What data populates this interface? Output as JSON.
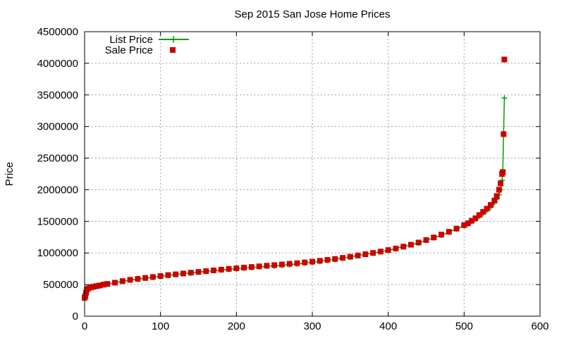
{
  "chart_data": {
    "type": "line",
    "title": "Sep 2015 San Jose Home Prices",
    "xlabel": "",
    "ylabel": "Price",
    "xlim": [
      0,
      600
    ],
    "ylim": [
      0,
      4500000
    ],
    "xticks": [
      "0",
      "100",
      "200",
      "300",
      "400",
      "500",
      "600"
    ],
    "yticks": [
      "0",
      "500000",
      "1000000",
      "1500000",
      "2000000",
      "2500000",
      "3000000",
      "3500000",
      "4000000",
      "4500000"
    ],
    "grid": true,
    "legend_position": "top-left",
    "series": [
      {
        "name": "List Price",
        "color": "#00a000",
        "marker": "plus",
        "x": [
          0,
          1,
          2,
          3,
          5,
          8,
          12,
          16,
          20,
          25,
          30,
          40,
          50,
          60,
          70,
          80,
          90,
          100,
          110,
          120,
          130,
          140,
          150,
          160,
          170,
          180,
          190,
          200,
          210,
          220,
          230,
          240,
          250,
          260,
          270,
          280,
          290,
          300,
          310,
          320,
          330,
          340,
          350,
          360,
          370,
          380,
          390,
          400,
          410,
          420,
          430,
          440,
          450,
          460,
          470,
          480,
          490,
          500,
          505,
          510,
          515,
          520,
          525,
          530,
          535,
          540,
          543,
          546,
          548,
          550,
          551,
          552,
          553
        ],
        "values": [
          300000,
          320000,
          360000,
          420000,
          460000,
          470000,
          475000,
          480000,
          490000,
          500000,
          510000,
          530000,
          550000,
          570000,
          585000,
          600000,
          615000,
          630000,
          645000,
          660000,
          675000,
          685000,
          695000,
          710000,
          720000,
          730000,
          740000,
          750000,
          760000,
          770000,
          780000,
          790000,
          795000,
          805000,
          815000,
          825000,
          840000,
          855000,
          870000,
          885000,
          900000,
          920000,
          940000,
          960000,
          980000,
          1000000,
          1020000,
          1040000,
          1070000,
          1100000,
          1130000,
          1160000,
          1200000,
          1240000,
          1280000,
          1330000,
          1380000,
          1430000,
          1460000,
          1500000,
          1540000,
          1580000,
          1620000,
          1670000,
          1720000,
          1790000,
          1850000,
          1920000,
          2000000,
          2150000,
          2300000,
          2880000,
          3450000
        ]
      },
      {
        "name": "Sale Price",
        "color": "#cc0000",
        "marker": "square",
        "x": [
          0,
          1,
          2,
          3,
          5,
          8,
          12,
          16,
          20,
          25,
          30,
          40,
          50,
          60,
          70,
          80,
          90,
          100,
          110,
          120,
          130,
          140,
          150,
          160,
          170,
          180,
          190,
          200,
          210,
          220,
          230,
          240,
          250,
          260,
          270,
          280,
          290,
          300,
          310,
          320,
          330,
          340,
          350,
          360,
          370,
          380,
          390,
          400,
          410,
          420,
          430,
          440,
          450,
          460,
          470,
          480,
          490,
          500,
          505,
          510,
          515,
          520,
          525,
          530,
          535,
          540,
          543,
          546,
          548,
          550,
          551,
          552,
          553
        ],
        "values": [
          290000,
          320000,
          370000,
          420000,
          440000,
          455000,
          465000,
          475000,
          485000,
          500000,
          510000,
          530000,
          555000,
          575000,
          590000,
          605000,
          620000,
          635000,
          650000,
          662000,
          675000,
          688000,
          700000,
          712000,
          724000,
          736000,
          748000,
          758000,
          768000,
          778000,
          788000,
          798000,
          808000,
          818000,
          828000,
          838000,
          850000,
          862000,
          876000,
          890000,
          905000,
          922000,
          940000,
          960000,
          980000,
          1000000,
          1022000,
          1045000,
          1070000,
          1100000,
          1130000,
          1165000,
          1205000,
          1245000,
          1290000,
          1335000,
          1385000,
          1440000,
          1470000,
          1510000,
          1550000,
          1600000,
          1650000,
          1700000,
          1760000,
          1830000,
          1900000,
          2000000,
          2100000,
          2250000,
          2280000,
          2880000,
          4060000
        ]
      }
    ]
  }
}
